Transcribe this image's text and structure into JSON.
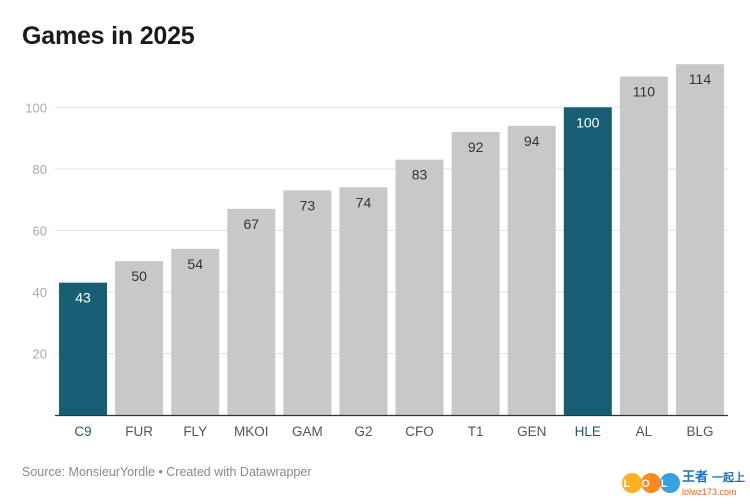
{
  "chart_data": {
    "type": "bar",
    "title": "Games in 2025",
    "categories": [
      "C9",
      "FUR",
      "FLY",
      "MKOI",
      "GAM",
      "G2",
      "CFO",
      "T1",
      "GEN",
      "HLE",
      "AL",
      "BLG"
    ],
    "values": [
      43,
      50,
      54,
      67,
      73,
      74,
      83,
      92,
      94,
      100,
      110,
      114
    ],
    "highlighted": [
      "C9",
      "HLE"
    ],
    "yticks": [
      20,
      40,
      60,
      80,
      100
    ],
    "ylim": [
      0,
      118
    ],
    "xlabel": "",
    "ylabel": "",
    "grid": true,
    "colors": {
      "default_bar": "#c8c8c8",
      "highlight_bar": "#175e75",
      "highlight_label": "#175e75",
      "label": "#333333",
      "label_on_highlight": "#ffffff"
    }
  },
  "footer": {
    "source": "Source: MonsieurYordle • Created with Datawrapper"
  },
  "watermark": {
    "logo": "LOL",
    "brand": "王者",
    "slogan": "一起上",
    "url": "lolwz173.com"
  }
}
